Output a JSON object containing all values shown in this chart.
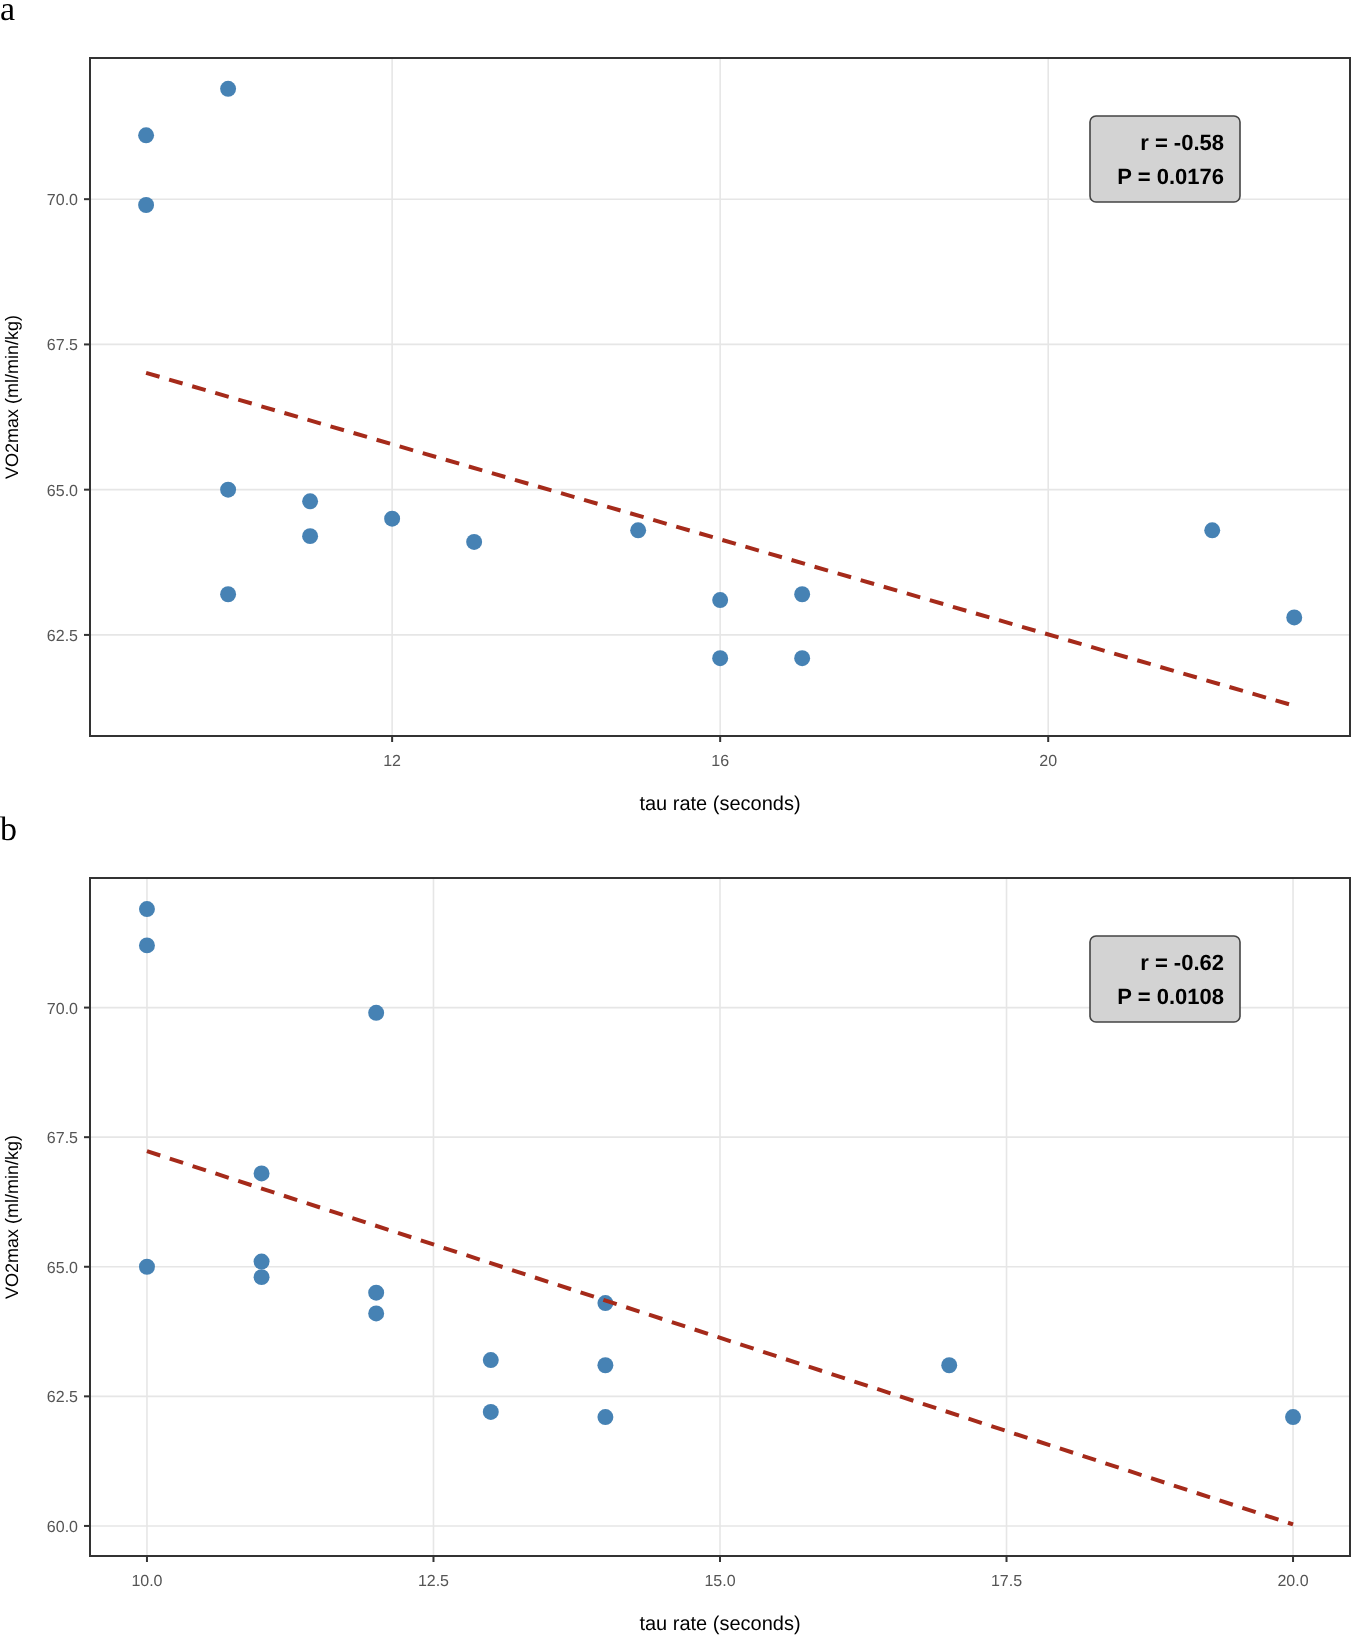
{
  "chart_data": [
    {
      "type": "scatter",
      "title": "a",
      "xlabel": "tau rate (seconds)",
      "ylabel": "VO2max (ml/min/kg)",
      "xlim": [
        8.316,
        23.68
      ],
      "ylim": [
        60.76,
        72.43
      ],
      "xticks": [
        12,
        16,
        20
      ],
      "yticks": [
        {
          "value": 62.5,
          "label": "62.5"
        },
        {
          "value": 65,
          "label": "65.0"
        },
        {
          "value": 67.5,
          "label": "67.5"
        },
        {
          "value": 70,
          "label": "70.0"
        }
      ],
      "grid": true,
      "annotations": [
        "r = -0.58",
        "P = 0.0176"
      ],
      "series": [
        {
          "color": "#4682b4",
          "marker": "circle",
          "x": [
            9,
            9,
            10,
            10,
            10,
            11,
            11,
            12,
            13,
            15,
            16,
            16,
            17,
            17,
            22,
            23
          ],
          "values": [
            71.1,
            69.9,
            71.9,
            65.0,
            63.2,
            64.8,
            64.2,
            64.5,
            64.1,
            64.3,
            63.1,
            62.1,
            63.2,
            62.1,
            64.3,
            62.8
          ]
        },
        {
          "type": "line",
          "color": "#a52a1a",
          "marker": "none",
          "line_style": "dashed",
          "x": [
            9,
            23
          ],
          "values": [
            67.01,
            61.28
          ]
        }
      ]
    },
    {
      "type": "scatter",
      "title": "b",
      "xlabel": "tau rate (seconds)",
      "ylabel": "VO2max (ml/min/kg)",
      "xlim": [
        9.503,
        20.497
      ],
      "ylim": [
        59.42,
        72.5
      ],
      "xticks": [
        {
          "value": 10,
          "label": "10.0"
        },
        {
          "value": 12.5,
          "label": "12.5"
        },
        {
          "value": 15,
          "label": "15.0"
        },
        {
          "value": 17.5,
          "label": "17.5"
        },
        {
          "value": 20,
          "label": "20.0"
        }
      ],
      "yticks": [
        {
          "value": 60,
          "label": "60.0"
        },
        {
          "value": 62.5,
          "label": "62.5"
        },
        {
          "value": 65,
          "label": "65.0"
        },
        {
          "value": 67.5,
          "label": "67.5"
        },
        {
          "value": 70,
          "label": "70.0"
        }
      ],
      "grid": true,
      "annotations": [
        "r = -0.62",
        "P = 0.0108"
      ],
      "series": [
        {
          "color": "#4682b4",
          "marker": "circle",
          "x": [
            10,
            10,
            10,
            11,
            11,
            11,
            12,
            12,
            12,
            13,
            13,
            14,
            14,
            14,
            17,
            20
          ],
          "values": [
            71.9,
            71.2,
            65.0,
            66.8,
            65.1,
            64.8,
            69.9,
            64.5,
            64.1,
            63.2,
            62.2,
            64.3,
            63.1,
            62.1,
            63.1,
            62.1
          ]
        },
        {
          "type": "line",
          "color": "#a52a1a",
          "marker": "none",
          "line_style": "dashed",
          "x": [
            10,
            20
          ],
          "values": [
            67.23,
            60.03
          ]
        }
      ]
    }
  ]
}
